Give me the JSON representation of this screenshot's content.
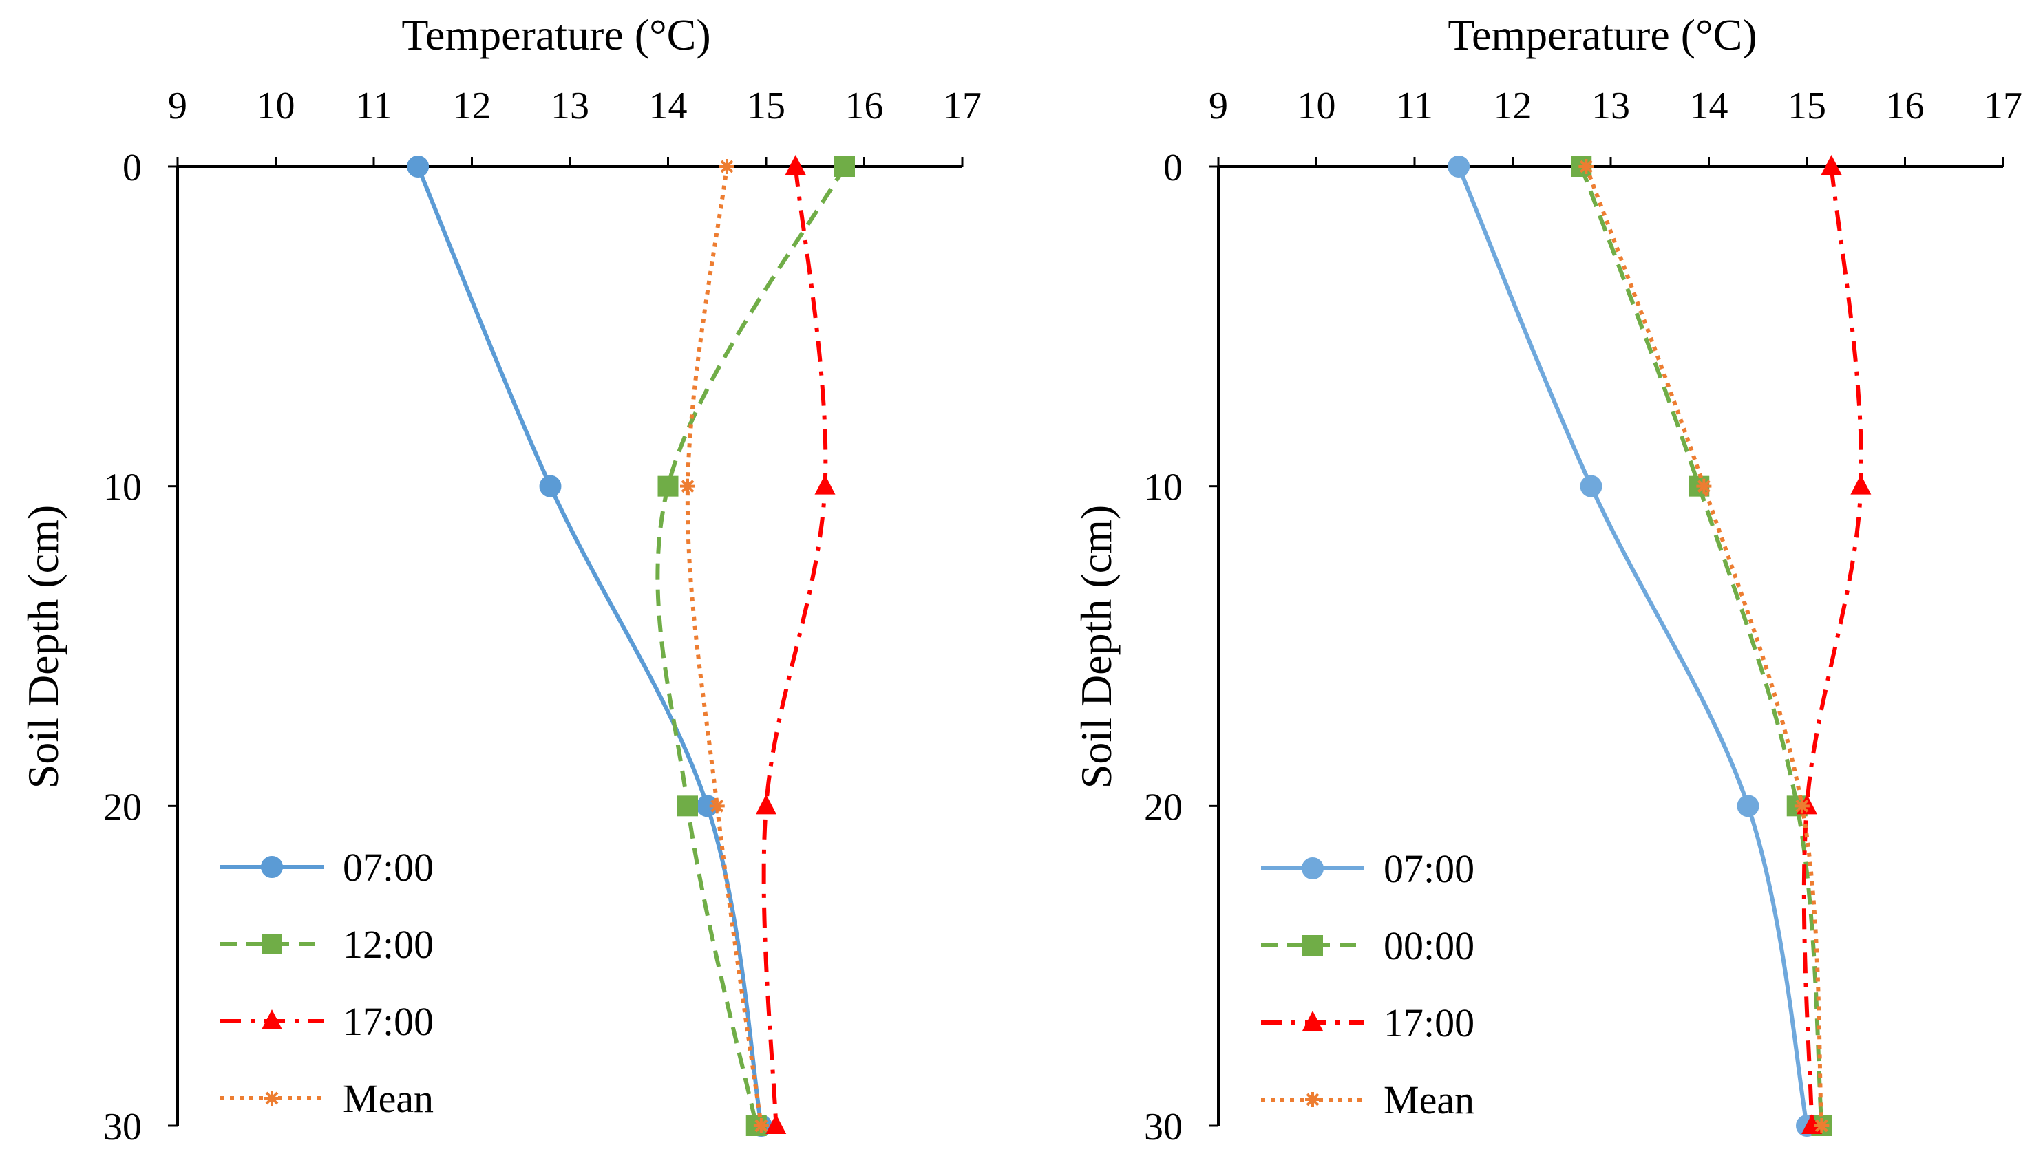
{
  "chart_data": [
    {
      "type": "line",
      "xlabel": "Temperature (°C)",
      "ylabel": "Soil Depth (cm)",
      "xlim": [
        9,
        17
      ],
      "ylim": [
        0,
        30
      ],
      "x_ticks": [
        "9",
        "10",
        "11",
        "12",
        "13",
        "14",
        "15",
        "16",
        "17"
      ],
      "y_ticks": [
        "0",
        "10",
        "20",
        "30"
      ],
      "x_axis_position": "top",
      "y_axis_inverted": true,
      "legend_position": "bottom-left",
      "grid": false,
      "series": [
        {
          "name": "07:00",
          "color": "#5B9BD5",
          "dash": "solid",
          "marker": "circle",
          "points": [
            {
              "temp": 11.45,
              "depth": 0
            },
            {
              "temp": 12.8,
              "depth": 10
            },
            {
              "temp": 14.4,
              "depth": 20
            },
            {
              "temp": 14.95,
              "depth": 30
            }
          ]
        },
        {
          "name": "12:00",
          "color": "#70AD47",
          "dash": "dash",
          "marker": "square",
          "points": [
            {
              "temp": 15.8,
              "depth": 0
            },
            {
              "temp": 14.0,
              "depth": 10
            },
            {
              "temp": 14.2,
              "depth": 20
            },
            {
              "temp": 14.9,
              "depth": 30
            }
          ]
        },
        {
          "name": "17:00",
          "color": "#FF0000",
          "dash": "dashdot",
          "marker": "triangle",
          "points": [
            {
              "temp": 15.3,
              "depth": 0
            },
            {
              "temp": 15.6,
              "depth": 10
            },
            {
              "temp": 15.0,
              "depth": 20
            },
            {
              "temp": 15.1,
              "depth": 30
            }
          ]
        },
        {
          "name": "Mean",
          "color": "#ED7D31",
          "dash": "dot",
          "marker": "asterisk",
          "points": [
            {
              "temp": 14.6,
              "depth": 0
            },
            {
              "temp": 14.2,
              "depth": 10
            },
            {
              "temp": 14.5,
              "depth": 20
            },
            {
              "temp": 14.95,
              "depth": 30
            }
          ]
        }
      ]
    },
    {
      "type": "line",
      "xlabel": "Temperature (°C)",
      "ylabel": "Soil Depth (cm)",
      "xlim": [
        9,
        17
      ],
      "ylim": [
        0,
        30
      ],
      "x_ticks": [
        "9",
        "10",
        "11",
        "12",
        "13",
        "14",
        "15",
        "16",
        "17"
      ],
      "y_ticks": [
        "0",
        "10",
        "20",
        "30"
      ],
      "x_axis_position": "top",
      "y_axis_inverted": true,
      "legend_position": "bottom-left",
      "grid": false,
      "series": [
        {
          "name": "07:00",
          "color": "#6FA8DC",
          "dash": "solid",
          "marker": "circle",
          "points": [
            {
              "temp": 11.45,
              "depth": 0
            },
            {
              "temp": 12.8,
              "depth": 10
            },
            {
              "temp": 14.4,
              "depth": 20
            },
            {
              "temp": 15.0,
              "depth": 30
            }
          ]
        },
        {
          "name": "00:00",
          "color": "#70AD47",
          "dash": "dash",
          "marker": "square",
          "points": [
            {
              "temp": 12.7,
              "depth": 0
            },
            {
              "temp": 13.9,
              "depth": 10
            },
            {
              "temp": 14.9,
              "depth": 20
            },
            {
              "temp": 15.15,
              "depth": 30
            }
          ]
        },
        {
          "name": "17:00",
          "color": "#FF0000",
          "dash": "dashdot",
          "marker": "triangle",
          "points": [
            {
              "temp": 15.25,
              "depth": 0
            },
            {
              "temp": 15.55,
              "depth": 10
            },
            {
              "temp": 15.0,
              "depth": 20
            },
            {
              "temp": 15.05,
              "depth": 30
            }
          ]
        },
        {
          "name": "Mean",
          "color": "#ED7D31",
          "dash": "dot",
          "marker": "asterisk",
          "points": [
            {
              "temp": 12.75,
              "depth": 0
            },
            {
              "temp": 13.95,
              "depth": 10
            },
            {
              "temp": 14.95,
              "depth": 20
            },
            {
              "temp": 15.15,
              "depth": 30
            }
          ]
        }
      ]
    }
  ]
}
